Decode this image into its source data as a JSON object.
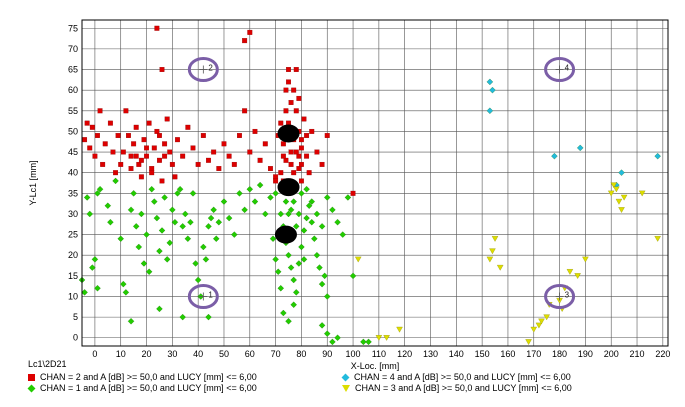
{
  "chart_data": {
    "type": "scatter",
    "title": "",
    "xlabel": "X-Loc. [mm]",
    "ylabel": "Y-Lc1 [mm]",
    "xlim": [
      -5,
      222
    ],
    "ylim": [
      -2,
      77
    ],
    "x_ticks": [
      0,
      10,
      20,
      30,
      40,
      50,
      60,
      70,
      80,
      90,
      100,
      110,
      120,
      130,
      140,
      150,
      160,
      170,
      180,
      190,
      200,
      210,
      220
    ],
    "y_ticks": [
      0,
      5,
      10,
      15,
      20,
      25,
      30,
      35,
      40,
      45,
      50,
      55,
      60,
      65,
      70,
      75
    ],
    "grid": true,
    "legend_title": "Lc1\\2D21",
    "series": [
      {
        "name": "CHAN = 2 and A [dB] >= 50,0 and LUCY [mm] <= 6,00",
        "marker": "square",
        "color": "#dd0000",
        "points": [
          [
            -4,
            48
          ],
          [
            -3,
            52
          ],
          [
            -2,
            46
          ],
          [
            -1,
            51
          ],
          [
            0,
            44
          ],
          [
            1,
            49
          ],
          [
            2,
            55
          ],
          [
            3,
            42
          ],
          [
            4,
            47
          ],
          [
            6,
            52
          ],
          [
            7,
            45
          ],
          [
            8,
            40
          ],
          [
            9,
            49
          ],
          [
            10,
            42
          ],
          [
            11,
            45
          ],
          [
            12,
            55
          ],
          [
            13,
            49
          ],
          [
            14,
            44
          ],
          [
            15,
            47
          ],
          [
            16,
            51
          ],
          [
            17,
            42
          ],
          [
            18,
            39
          ],
          [
            19,
            48
          ],
          [
            20,
            44
          ],
          [
            21,
            52
          ],
          [
            22,
            41
          ],
          [
            23,
            46
          ],
          [
            24,
            50
          ],
          [
            25,
            43
          ],
          [
            26,
            38
          ],
          [
            27,
            47
          ],
          [
            28,
            53
          ],
          [
            29,
            45
          ],
          [
            30,
            42
          ],
          [
            31,
            39
          ],
          [
            32,
            48
          ],
          [
            34,
            44
          ],
          [
            36,
            51
          ],
          [
            38,
            46
          ],
          [
            40,
            42
          ],
          [
            42,
            49
          ],
          [
            44,
            43
          ],
          [
            46,
            45
          ],
          [
            48,
            41
          ],
          [
            50,
            47
          ],
          [
            52,
            44
          ],
          [
            54,
            42
          ],
          [
            56,
            49
          ],
          [
            58,
            55
          ],
          [
            60,
            45
          ],
          [
            62,
            50
          ],
          [
            64,
            43
          ],
          [
            66,
            47
          ],
          [
            68,
            41
          ],
          [
            70,
            39
          ],
          [
            72,
            52
          ],
          [
            80,
            46
          ],
          [
            82,
            49
          ],
          [
            84,
            50
          ],
          [
            86,
            45
          ],
          [
            88,
            42
          ],
          [
            90,
            49
          ],
          [
            100,
            35
          ],
          [
            24,
            75
          ],
          [
            26,
            65
          ],
          [
            58,
            72
          ],
          [
            60,
            74
          ],
          [
            14,
            41
          ],
          [
            16,
            44
          ],
          [
            18,
            43
          ],
          [
            20,
            46
          ],
          [
            22,
            40
          ],
          [
            25,
            49
          ],
          [
            27,
            44
          ],
          [
            70,
            38
          ],
          [
            74,
            43
          ],
          [
            77,
            40
          ],
          [
            79,
            44
          ],
          [
            73,
            47
          ],
          [
            75,
            52
          ],
          [
            76,
            57
          ],
          [
            77,
            60
          ],
          [
            78,
            55
          ],
          [
            79,
            50
          ],
          [
            80,
            48
          ],
          [
            76,
            42
          ],
          [
            78,
            45
          ],
          [
            72,
            40
          ],
          [
            74,
            55
          ],
          [
            75,
            62
          ],
          [
            79,
            58
          ],
          [
            81,
            53
          ],
          [
            80,
            42
          ],
          [
            71,
            49
          ],
          [
            73,
            44
          ],
          [
            77,
            48
          ],
          [
            79,
            41
          ],
          [
            75,
            65
          ],
          [
            78,
            65
          ],
          [
            73,
            38
          ],
          [
            80,
            38
          ],
          [
            76,
            45
          ],
          [
            74,
            60
          ],
          [
            82,
            44
          ],
          [
            83,
            40
          ]
        ]
      },
      {
        "name": "CHAN = 1 and A [dB] >= 50,0 and LUCY [mm] <= 6,00",
        "marker": "diamond",
        "color": "#22cc00",
        "points": [
          [
            -5,
            14
          ],
          [
            -4,
            11
          ],
          [
            -3,
            34
          ],
          [
            -2,
            30
          ],
          [
            -1,
            17
          ],
          [
            0,
            19
          ],
          [
            1,
            35
          ],
          [
            2,
            36
          ],
          [
            5,
            32
          ],
          [
            6,
            28
          ],
          [
            8,
            38
          ],
          [
            10,
            24
          ],
          [
            11,
            13
          ],
          [
            12,
            11
          ],
          [
            14,
            31
          ],
          [
            15,
            35
          ],
          [
            16,
            27
          ],
          [
            17,
            22
          ],
          [
            18,
            30
          ],
          [
            19,
            18
          ],
          [
            20,
            25
          ],
          [
            21,
            16
          ],
          [
            22,
            36
          ],
          [
            23,
            33
          ],
          [
            24,
            29
          ],
          [
            25,
            21
          ],
          [
            26,
            26
          ],
          [
            27,
            34
          ],
          [
            28,
            19
          ],
          [
            29,
            23
          ],
          [
            30,
            31
          ],
          [
            31,
            28
          ],
          [
            32,
            35
          ],
          [
            33,
            36
          ],
          [
            34,
            27
          ],
          [
            35,
            30
          ],
          [
            36,
            24
          ],
          [
            37,
            28
          ],
          [
            38,
            35
          ],
          [
            39,
            18
          ],
          [
            40,
            14
          ],
          [
            41,
            10
          ],
          [
            42,
            22
          ],
          [
            43,
            19
          ],
          [
            44,
            27
          ],
          [
            45,
            29
          ],
          [
            46,
            31
          ],
          [
            47,
            24
          ],
          [
            48,
            28
          ],
          [
            50,
            33
          ],
          [
            52,
            29
          ],
          [
            54,
            25
          ],
          [
            56,
            35
          ],
          [
            58,
            31
          ],
          [
            60,
            36
          ],
          [
            62,
            33
          ],
          [
            64,
            37
          ],
          [
            66,
            30
          ],
          [
            68,
            34
          ],
          [
            70,
            35
          ],
          [
            72,
            30
          ],
          [
            73,
            27
          ],
          [
            74,
            23
          ],
          [
            75,
            20
          ],
          [
            76,
            17
          ],
          [
            77,
            14
          ],
          [
            78,
            11
          ],
          [
            79,
            18
          ],
          [
            80,
            22
          ],
          [
            81,
            26
          ],
          [
            82,
            29
          ],
          [
            83,
            32
          ],
          [
            84,
            28
          ],
          [
            85,
            24
          ],
          [
            86,
            20
          ],
          [
            87,
            17
          ],
          [
            88,
            13
          ],
          [
            89,
            15
          ],
          [
            90,
            10
          ],
          [
            72,
            12
          ],
          [
            71,
            16
          ],
          [
            70,
            19
          ],
          [
            69,
            24
          ],
          [
            74,
            33
          ],
          [
            76,
            31
          ],
          [
            78,
            27
          ],
          [
            80,
            35
          ],
          [
            82,
            36
          ],
          [
            84,
            33
          ],
          [
            86,
            30
          ],
          [
            88,
            27
          ],
          [
            90,
            34
          ],
          [
            92,
            31
          ],
          [
            94,
            28
          ],
          [
            96,
            25
          ],
          [
            98,
            34
          ],
          [
            100,
            15
          ],
          [
            104,
            -1
          ],
          [
            106,
            -1
          ],
          [
            73,
            36
          ],
          [
            75,
            30
          ],
          [
            77,
            33
          ],
          [
            79,
            30
          ],
          [
            81,
            19
          ],
          [
            77,
            8
          ],
          [
            75,
            4
          ],
          [
            73,
            6
          ],
          [
            44,
            5
          ],
          [
            34,
            5
          ],
          [
            25,
            7
          ],
          [
            14,
            4
          ],
          [
            1,
            12
          ],
          [
            88,
            3
          ],
          [
            90,
            1
          ],
          [
            92,
            -1
          ],
          [
            94,
            0
          ]
        ]
      },
      {
        "name": "CHAN = 4 and A [dB] >= 50,0 and LUCY [mm] <= 6,00",
        "marker": "diamond",
        "color": "#22bbdd",
        "points": [
          [
            153,
            62
          ],
          [
            154,
            60
          ],
          [
            153,
            55
          ],
          [
            178,
            44
          ],
          [
            188,
            46
          ],
          [
            202,
            37
          ],
          [
            204,
            40
          ],
          [
            218,
            44
          ]
        ]
      },
      {
        "name": "CHAN = 3 and A [dB] >= 50,0 and LUCY [mm] <= 6,00",
        "marker": "triangle",
        "color": "#dddd00",
        "points": [
          [
            102,
            19
          ],
          [
            110,
            0
          ],
          [
            113,
            0
          ],
          [
            118,
            2
          ],
          [
            153,
            19
          ],
          [
            154,
            21
          ],
          [
            155,
            24
          ],
          [
            157,
            17
          ],
          [
            168,
            -1
          ],
          [
            170,
            2
          ],
          [
            172,
            3
          ],
          [
            173,
            4
          ],
          [
            175,
            5
          ],
          [
            176,
            8
          ],
          [
            180,
            9
          ],
          [
            181,
            7
          ],
          [
            182,
            12
          ],
          [
            184,
            16
          ],
          [
            187,
            15
          ],
          [
            190,
            19
          ],
          [
            200,
            35
          ],
          [
            201,
            37
          ],
          [
            202,
            36
          ],
          [
            203,
            33
          ],
          [
            204,
            31
          ],
          [
            205,
            34
          ],
          [
            212,
            35
          ],
          [
            218,
            24
          ]
        ]
      }
    ],
    "clusters": [
      [
        75,
        49.5
      ],
      [
        75,
        36.5
      ],
      [
        74,
        25
      ]
    ],
    "sensors": [
      {
        "label": "2",
        "x": 42,
        "y": 65
      },
      {
        "label": "4",
        "x": 180,
        "y": 65
      },
      {
        "label": "1",
        "x": 42,
        "y": 10
      },
      {
        "label": "3",
        "x": 180,
        "y": 10
      }
    ]
  }
}
